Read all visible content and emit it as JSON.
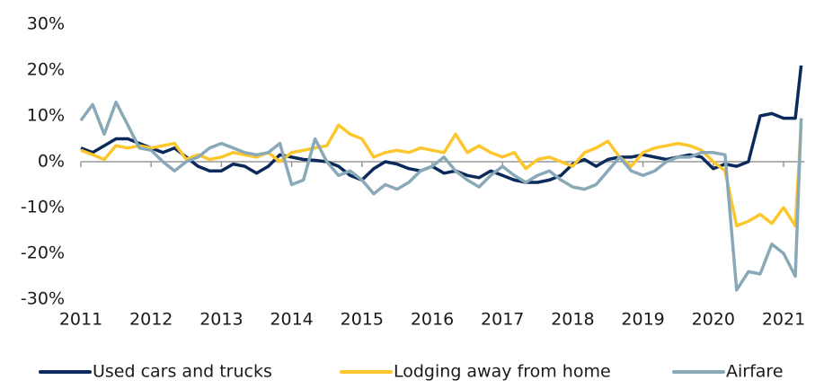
{
  "chart_data": {
    "type": "line",
    "x": [
      2011.0,
      2011.167,
      2011.333,
      2011.5,
      2011.667,
      2011.833,
      2012.0,
      2012.167,
      2012.333,
      2012.5,
      2012.667,
      2012.833,
      2013.0,
      2013.167,
      2013.333,
      2013.5,
      2013.667,
      2013.833,
      2014.0,
      2014.167,
      2014.333,
      2014.5,
      2014.667,
      2014.833,
      2015.0,
      2015.167,
      2015.333,
      2015.5,
      2015.667,
      2015.833,
      2016.0,
      2016.167,
      2016.333,
      2016.5,
      2016.667,
      2016.833,
      2017.0,
      2017.167,
      2017.333,
      2017.5,
      2017.667,
      2017.833,
      2018.0,
      2018.167,
      2018.333,
      2018.5,
      2018.667,
      2018.833,
      2019.0,
      2019.167,
      2019.333,
      2019.5,
      2019.667,
      2019.833,
      2020.0,
      2020.167,
      2020.333,
      2020.5,
      2020.667,
      2020.833,
      2021.0,
      2021.167,
      2021.25
    ],
    "series": [
      {
        "name": "Used cars and trucks",
        "color": "#0b2a5b",
        "values": [
          3,
          2,
          3.5,
          5,
          5,
          4,
          3,
          2,
          3,
          1,
          -1,
          -2,
          -2,
          -0.5,
          -1,
          -2.5,
          -1,
          1.5,
          1,
          0.5,
          0.3,
          0,
          -1,
          -3,
          -4,
          -1.5,
          0,
          -0.5,
          -1.5,
          -2,
          -1,
          -2.5,
          -2,
          -3,
          -3.5,
          -2,
          -3,
          -4,
          -4.5,
          -4.5,
          -4,
          -3,
          -0.5,
          0.5,
          -1,
          0.5,
          1,
          1,
          1.5,
          1,
          0.5,
          1,
          1.5,
          1,
          -1.5,
          -0.5,
          -1,
          0,
          10,
          10.5,
          9.5,
          9.5,
          21
        ]
      },
      {
        "name": "Lodging away from home",
        "color": "#fcc62d",
        "values": [
          2.5,
          1.5,
          0.5,
          3.5,
          3,
          3.5,
          3,
          3.5,
          4,
          0.5,
          1.5,
          0.5,
          1,
          2,
          1.5,
          1,
          2,
          0,
          2,
          2.5,
          3,
          3.5,
          8,
          6,
          5,
          1,
          2,
          2.5,
          2,
          3,
          2.5,
          2,
          6,
          2,
          3.5,
          2,
          1,
          2,
          -1.5,
          0.5,
          1,
          0,
          -1,
          2,
          3,
          4.5,
          1,
          -1,
          2,
          3,
          3.5,
          4,
          3.5,
          2.5,
          0,
          -2,
          -14,
          -13,
          -11.5,
          -13.5,
          -10,
          -14,
          8
        ]
      },
      {
        "name": "Airfare",
        "color": "#8aa9b8",
        "values": [
          9,
          12.5,
          6,
          13,
          8,
          3,
          2.5,
          0,
          -2,
          0,
          1,
          3,
          4,
          3,
          2,
          1.5,
          2,
          4,
          -5,
          -4,
          5,
          0,
          -3,
          -2,
          -4,
          -7,
          -5,
          -6,
          -4.5,
          -2,
          -1,
          1,
          -2,
          -4,
          -5.5,
          -3,
          -1,
          -3,
          -4.5,
          -3,
          -2,
          -4,
          -5.5,
          -6,
          -5,
          -2,
          1,
          -2,
          -3,
          -2,
          0,
          1,
          1,
          2,
          2,
          1.5,
          -28,
          -24,
          -24.5,
          -18,
          -20,
          -25,
          9.5
        ]
      }
    ],
    "xlim": [
      2011,
      2021.3
    ],
    "xticks": [
      2011,
      2012,
      2013,
      2014,
      2015,
      2016,
      2017,
      2018,
      2019,
      2020,
      2021
    ],
    "ylim": [
      -30,
      30
    ],
    "yticks": [
      {
        "value": -30,
        "label": "-30%"
      },
      {
        "value": -20,
        "label": "-20%"
      },
      {
        "value": -10,
        "label": "-10%"
      },
      {
        "value": 0,
        "label": "0%"
      },
      {
        "value": 10,
        "label": "10%"
      },
      {
        "value": 20,
        "label": "20%"
      },
      {
        "value": 30,
        "label": "30%"
      }
    ],
    "legend": "bottom"
  }
}
